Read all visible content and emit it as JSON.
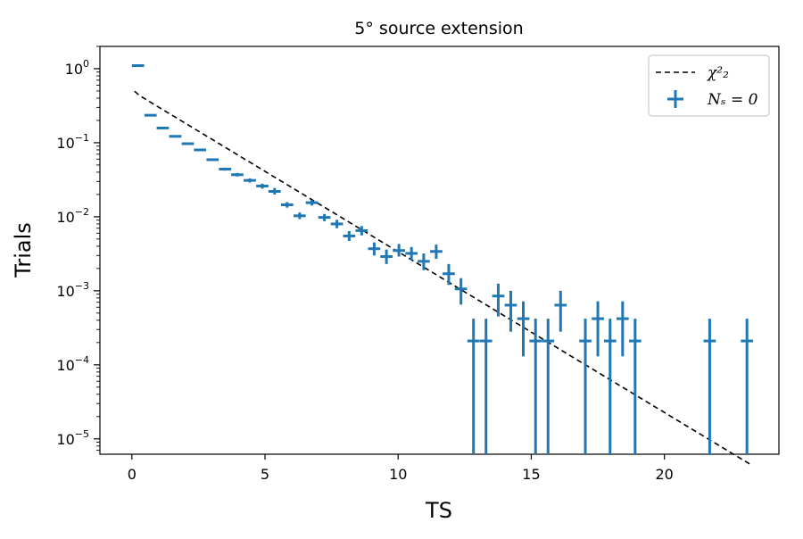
{
  "chart_data": {
    "type": "scatter",
    "title": "5° source extension",
    "xlabel": "TS",
    "ylabel": "Trials",
    "xlim": [
      -1.2,
      24.3
    ],
    "ylim": [
      6.2e-06,
      2.0
    ],
    "yscale": "log",
    "xticks": [
      0,
      5,
      10,
      15,
      20
    ],
    "xtick_labels": [
      "0",
      "5",
      "10",
      "15",
      "20"
    ],
    "yticks": [
      1e-05,
      0.0001,
      0.001,
      0.01,
      0.1,
      1
    ],
    "ytick_labels": [
      {
        "base": "10",
        "exp": "−5"
      },
      {
        "base": "10",
        "exp": "−4"
      },
      {
        "base": "10",
        "exp": "−3"
      },
      {
        "base": "10",
        "exp": "−2"
      },
      {
        "base": "10",
        "exp": "−1"
      },
      {
        "base": "10",
        "exp": "0"
      }
    ],
    "legend": {
      "placement": "top-right",
      "entries": [
        {
          "label": "χ²₂",
          "style": "dashed-line",
          "color": "#000000"
        },
        {
          "label": "Nₛ = 0",
          "style": "errorbar-marker",
          "color": "#1f77b4"
        }
      ]
    },
    "series": [
      {
        "name": "Nₛ = 0",
        "color": "#1f77b4",
        "bin_halfwidth": 0.23,
        "points": [
          {
            "x": 0.23,
            "y": 1.1,
            "ylo": 1.1,
            "yhi": 1.1
          },
          {
            "x": 0.7,
            "y": 0.235,
            "ylo": 0.232,
            "yhi": 0.238
          },
          {
            "x": 1.16,
            "y": 0.158,
            "ylo": 0.155,
            "yhi": 0.161
          },
          {
            "x": 1.63,
            "y": 0.122,
            "ylo": 0.119,
            "yhi": 0.125
          },
          {
            "x": 2.1,
            "y": 0.097,
            "ylo": 0.094,
            "yhi": 0.1
          },
          {
            "x": 2.56,
            "y": 0.08,
            "ylo": 0.077,
            "yhi": 0.083
          },
          {
            "x": 3.03,
            "y": 0.059,
            "ylo": 0.057,
            "yhi": 0.061
          },
          {
            "x": 3.5,
            "y": 0.044,
            "ylo": 0.042,
            "yhi": 0.046
          },
          {
            "x": 3.96,
            "y": 0.037,
            "ylo": 0.035,
            "yhi": 0.039
          },
          {
            "x": 4.43,
            "y": 0.031,
            "ylo": 0.029,
            "yhi": 0.033
          },
          {
            "x": 4.9,
            "y": 0.026,
            "ylo": 0.024,
            "yhi": 0.028
          },
          {
            "x": 5.36,
            "y": 0.022,
            "ylo": 0.02,
            "yhi": 0.0245
          },
          {
            "x": 5.83,
            "y": 0.0145,
            "ylo": 0.0133,
            "yhi": 0.0158
          },
          {
            "x": 6.3,
            "y": 0.0103,
            "ylo": 0.0093,
            "yhi": 0.0114
          },
          {
            "x": 6.76,
            "y": 0.0155,
            "ylo": 0.0142,
            "yhi": 0.0168
          },
          {
            "x": 7.23,
            "y": 0.0098,
            "ylo": 0.0087,
            "yhi": 0.0109
          },
          {
            "x": 7.7,
            "y": 0.008,
            "ylo": 0.007,
            "yhi": 0.0091
          },
          {
            "x": 8.16,
            "y": 0.0055,
            "ylo": 0.0047,
            "yhi": 0.0064
          },
          {
            "x": 8.63,
            "y": 0.0065,
            "ylo": 0.0056,
            "yhi": 0.0075
          },
          {
            "x": 9.1,
            "y": 0.0037,
            "ylo": 0.003,
            "yhi": 0.0045
          },
          {
            "x": 9.56,
            "y": 0.0029,
            "ylo": 0.0023,
            "yhi": 0.0036
          },
          {
            "x": 10.03,
            "y": 0.0035,
            "ylo": 0.0029,
            "yhi": 0.0043
          },
          {
            "x": 10.5,
            "y": 0.0032,
            "ylo": 0.0026,
            "yhi": 0.0039
          },
          {
            "x": 10.96,
            "y": 0.0025,
            "ylo": 0.0019,
            "yhi": 0.0032
          },
          {
            "x": 11.43,
            "y": 0.0034,
            "ylo": 0.0027,
            "yhi": 0.0042
          },
          {
            "x": 11.9,
            "y": 0.0017,
            "ylo": 0.0012,
            "yhi": 0.0023
          },
          {
            "x": 12.36,
            "y": 0.00106,
            "ylo": 0.00065,
            "yhi": 0.00148
          },
          {
            "x": 12.83,
            "y": 0.00021,
            "ylo": 6.2e-06,
            "yhi": 0.00042
          },
          {
            "x": 13.3,
            "y": 0.00021,
            "ylo": 6.2e-06,
            "yhi": 0.00042
          },
          {
            "x": 13.76,
            "y": 0.00085,
            "ylo": 0.00045,
            "yhi": 0.00125
          },
          {
            "x": 14.23,
            "y": 0.00064,
            "ylo": 0.00028,
            "yhi": 0.001
          },
          {
            "x": 14.7,
            "y": 0.00042,
            "ylo": 0.00013,
            "yhi": 0.00072
          },
          {
            "x": 15.16,
            "y": 0.00021,
            "ylo": 6.2e-06,
            "yhi": 0.00042
          },
          {
            "x": 15.63,
            "y": 0.00021,
            "ylo": 6.2e-06,
            "yhi": 0.00042
          },
          {
            "x": 16.1,
            "y": 0.00064,
            "ylo": 0.00028,
            "yhi": 0.001
          },
          {
            "x": 17.03,
            "y": 0.00021,
            "ylo": 6.2e-06,
            "yhi": 0.00042
          },
          {
            "x": 17.5,
            "y": 0.00042,
            "ylo": 0.00013,
            "yhi": 0.00072
          },
          {
            "x": 17.96,
            "y": 0.00021,
            "ylo": 6.2e-06,
            "yhi": 0.00042
          },
          {
            "x": 18.43,
            "y": 0.00042,
            "ylo": 0.00013,
            "yhi": 0.00072
          },
          {
            "x": 18.9,
            "y": 0.00021,
            "ylo": 6.2e-06,
            "yhi": 0.00042
          },
          {
            "x": 21.7,
            "y": 0.00021,
            "ylo": 6.2e-06,
            "yhi": 0.00042
          },
          {
            "x": 23.1,
            "y": 0.00021,
            "ylo": 6.2e-06,
            "yhi": 0.00042
          }
        ]
      },
      {
        "name": "χ²₂",
        "style": "dashed",
        "color": "#000000",
        "function": "chi2_2_survival",
        "x_range": [
          0.1,
          23.3
        ]
      }
    ]
  }
}
